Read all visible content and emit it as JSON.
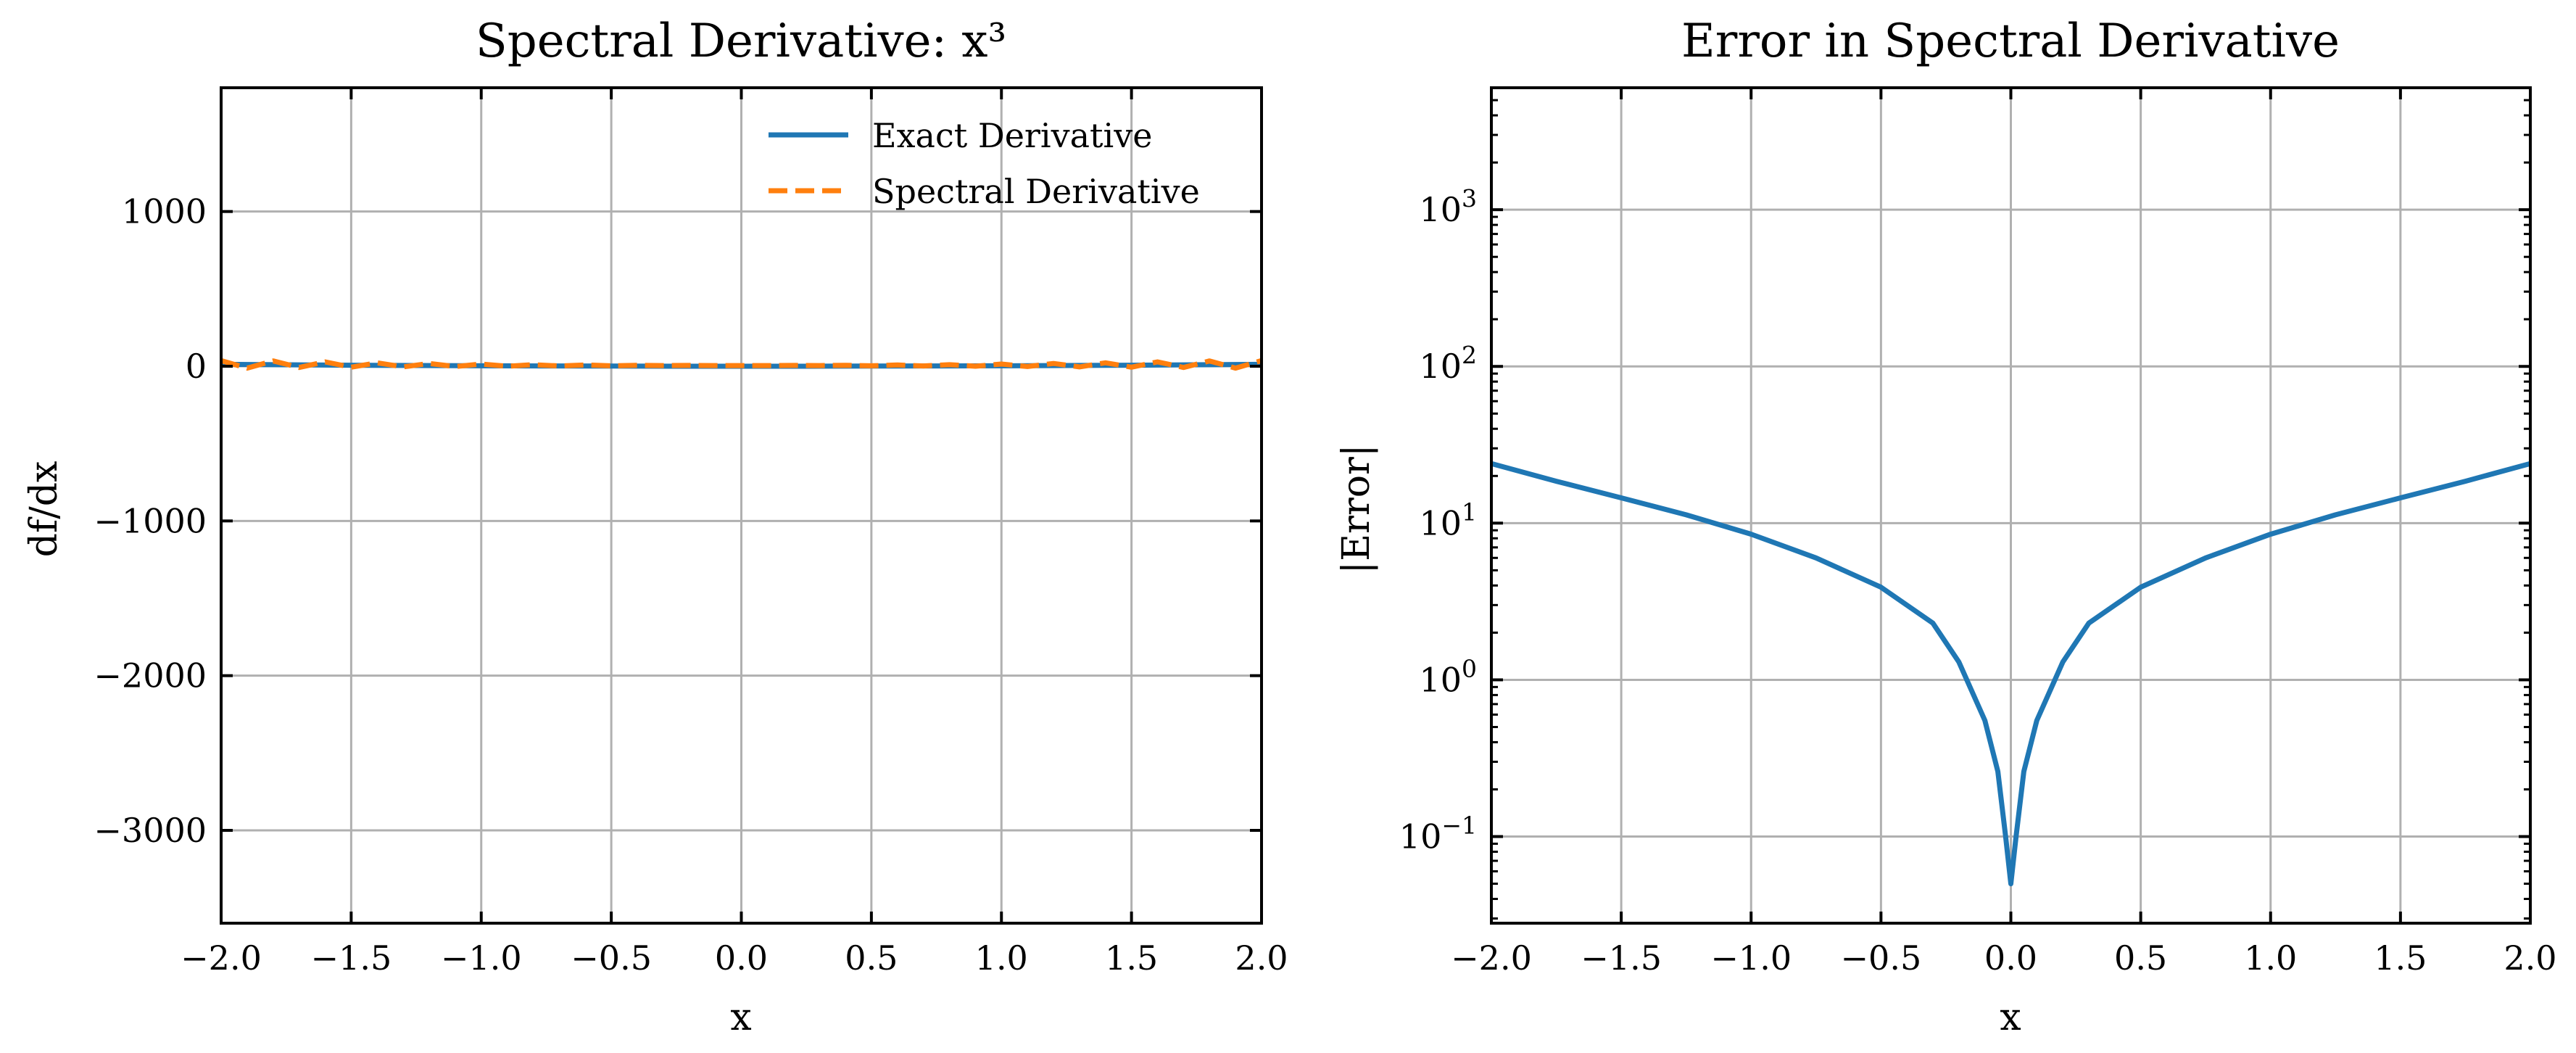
{
  "chart_data": [
    {
      "type": "line",
      "title": "Spectral Derivative: x³",
      "xlabel": "x",
      "ylabel": "df/dx",
      "xlim": [
        -2.0,
        2.0
      ],
      "ylim": [
        -3600,
        1800
      ],
      "xticks": [
        -2.0,
        -1.5,
        -1.0,
        -0.5,
        0.0,
        0.5,
        1.0,
        1.5,
        2.0
      ],
      "xtick_labels": [
        "−2.0",
        "−1.5",
        "−1.0",
        "−0.5",
        "0.0",
        "0.5",
        "1.0",
        "1.5",
        "2.0"
      ],
      "yticks": [
        1000,
        0,
        -1000,
        -2000,
        -3000
      ],
      "ytick_labels": [
        "1000",
        "0",
        "−1000",
        "−2000",
        "−3000"
      ],
      "grid": true,
      "legend_position": "top-right",
      "series": [
        {
          "name": "Exact Derivative",
          "color": "#1f77b4",
          "style": "solid",
          "x": [
            -2.0,
            -1.75,
            -1.5,
            -1.25,
            -1.0,
            -0.75,
            -0.5,
            -0.25,
            0.0,
            0.25,
            0.5,
            0.75,
            1.0,
            1.25,
            1.5,
            1.75,
            2.0
          ],
          "y": [
            12.0,
            9.19,
            6.75,
            4.69,
            3.0,
            1.69,
            0.75,
            0.19,
            0.0,
            0.19,
            0.75,
            1.69,
            3.0,
            4.69,
            6.75,
            9.19,
            12.0
          ]
        },
        {
          "name": "Spectral Derivative",
          "color": "#ff7f0e",
          "style": "dashed",
          "x": [
            -2.0,
            -1.9,
            -1.8,
            -1.7,
            -1.6,
            -1.5,
            -1.4,
            -1.3,
            -1.2,
            -1.1,
            -1.0,
            -0.9,
            -0.8,
            -0.7,
            -0.6,
            -0.5,
            -0.4,
            -0.3,
            -0.2,
            -0.1,
            0.0,
            0.1,
            0.2,
            0.3,
            0.4,
            0.5,
            0.6,
            0.7,
            0.8,
            0.9,
            1.0,
            1.1,
            1.2,
            1.3,
            1.4,
            1.5,
            1.6,
            1.7,
            1.8,
            1.9,
            2.0
          ],
          "y": [
            36,
            -12,
            34,
            -8,
            28,
            -6,
            22,
            -4,
            18,
            -2,
            14,
            0,
            10,
            2,
            8,
            3,
            6,
            4,
            5,
            4,
            4,
            4,
            5,
            4,
            6,
            3,
            8,
            2,
            10,
            0,
            14,
            -2,
            18,
            -4,
            22,
            -6,
            28,
            -8,
            34,
            -12,
            36
          ]
        }
      ]
    },
    {
      "type": "line",
      "title": "Error in Spectral Derivative",
      "xlabel": "x",
      "ylabel": "|Error|",
      "xlim": [
        -2.0,
        2.0
      ],
      "yscale": "log",
      "ylim": [
        0.028,
        6000
      ],
      "xticks": [
        -2.0,
        -1.5,
        -1.0,
        -0.5,
        0.0,
        0.5,
        1.0,
        1.5,
        2.0
      ],
      "xtick_labels": [
        "−2.0",
        "−1.5",
        "−1.0",
        "−0.5",
        "0.0",
        "0.5",
        "1.0",
        "1.5",
        "2.0"
      ],
      "yticks": [
        1000,
        100,
        10,
        1,
        0.1
      ],
      "ytick_labels": [
        {
          "base": "10",
          "exp": "3"
        },
        {
          "base": "10",
          "exp": "2"
        },
        {
          "base": "10",
          "exp": "1"
        },
        {
          "base": "10",
          "exp": "0"
        },
        {
          "base": "10",
          "exp": "−1"
        }
      ],
      "grid": true,
      "series": [
        {
          "color": "#1f77b4",
          "style": "solid",
          "x": [
            -2.0,
            -1.75,
            -1.5,
            -1.25,
            -1.0,
            -0.75,
            -0.5,
            -0.3,
            -0.2,
            -0.1,
            -0.05,
            -0.02,
            0.0,
            0.02,
            0.05,
            0.1,
            0.2,
            0.3,
            0.5,
            0.75,
            1.0,
            1.25,
            1.5,
            1.75,
            2.0
          ],
          "y": [
            24,
            18.5,
            14.5,
            11.3,
            8.5,
            6.0,
            3.9,
            2.3,
            1.3,
            0.55,
            0.26,
            0.1,
            0.05,
            0.1,
            0.26,
            0.55,
            1.3,
            2.3,
            3.9,
            6.0,
            8.5,
            11.3,
            14.5,
            18.5,
            24
          ]
        }
      ]
    }
  ]
}
